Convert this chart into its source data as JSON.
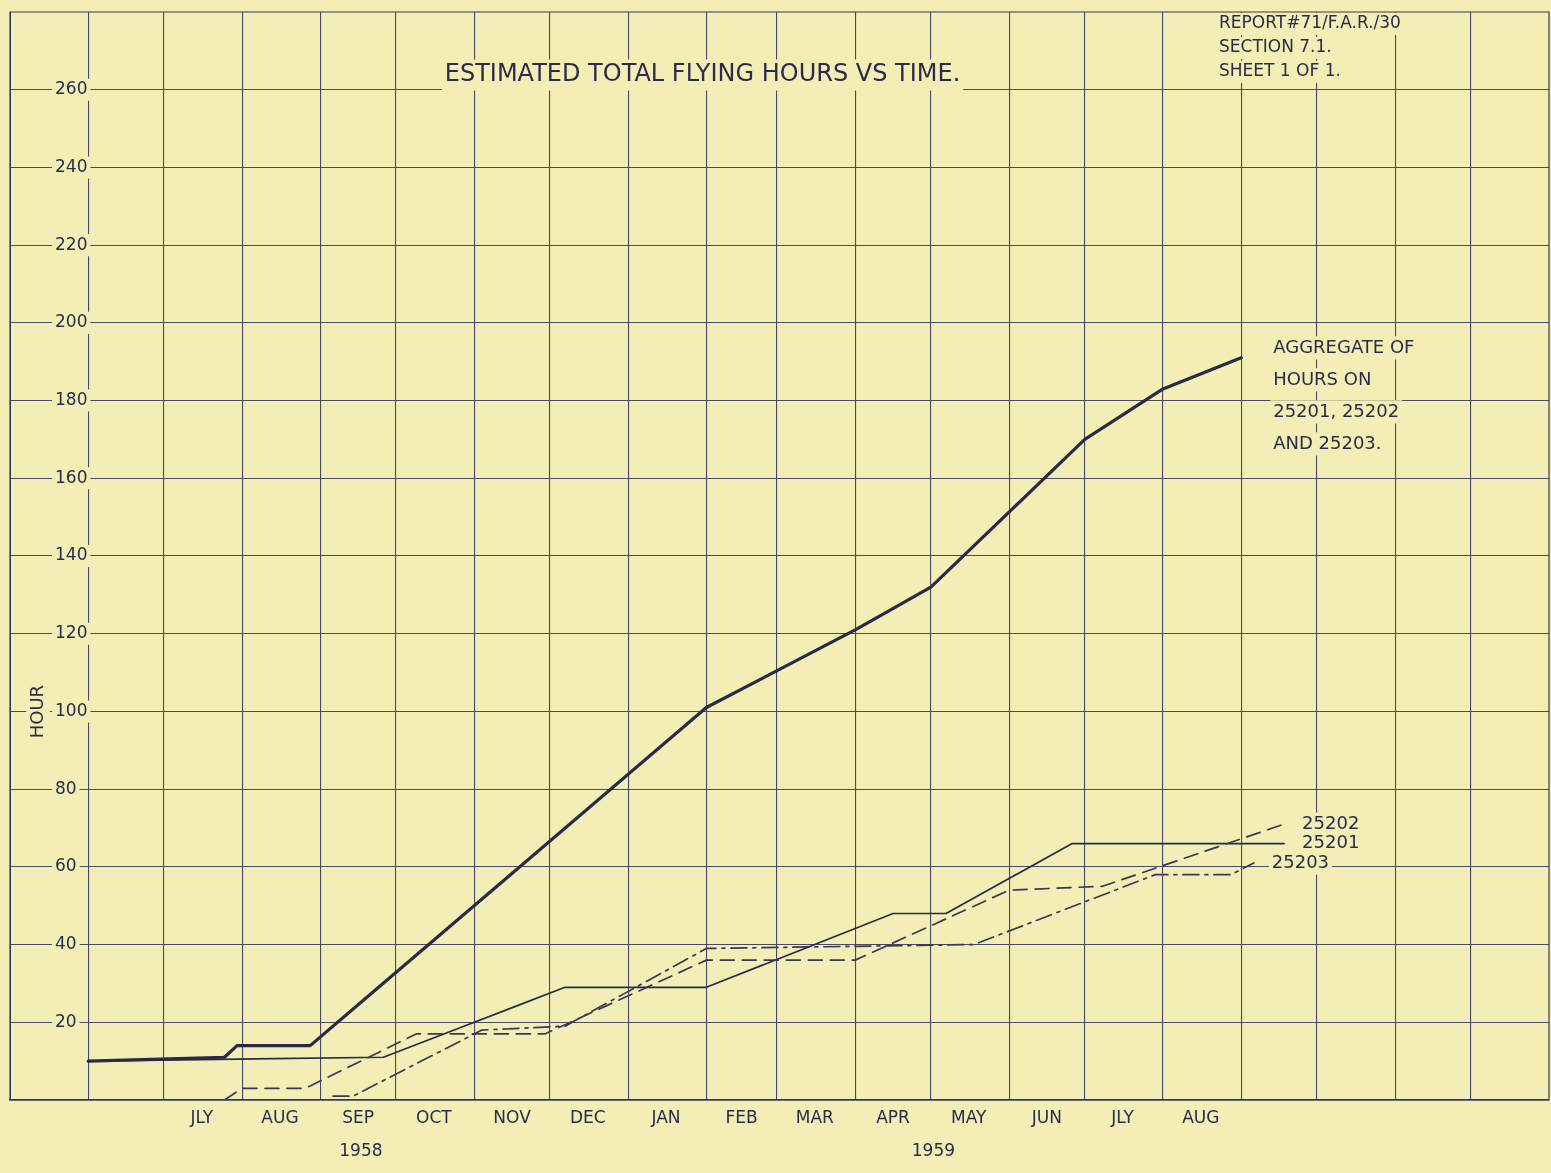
{
  "chart_data": {
    "type": "line",
    "title": "ESTIMATED TOTAL FLYING HOURS VS TIME.",
    "ylabel": "HOUR",
    "annotations": [
      "REPORT#71/F.A.R./30",
      "SECTION 7.1.",
      "SHEET 1 OF 1.",
      "1958",
      "1959"
    ],
    "xlim": [
      "1958-05-01",
      "1960-01-01"
    ],
    "xticks": [
      {
        "value": "1958-06-01",
        "label": null
      },
      {
        "value": "1958-07-01",
        "label": null
      },
      {
        "value": "1958-08-01",
        "label": null
      },
      {
        "value": "1958-09-01",
        "label": null
      },
      {
        "value": "1958-10-01",
        "label": null
      },
      {
        "value": "1958-11-01",
        "label": null
      },
      {
        "value": "1958-12-01",
        "label": null
      },
      {
        "value": "1959-01-01",
        "label": null
      },
      {
        "value": "1959-02-01",
        "label": null
      },
      {
        "value": "1959-03-01",
        "label": null
      },
      {
        "value": "1959-04-01",
        "label": null
      },
      {
        "value": "1959-05-01",
        "label": null
      },
      {
        "value": "1959-06-01",
        "label": null
      },
      {
        "value": "1959-07-01",
        "label": null
      },
      {
        "value": "1959-08-01",
        "label": null
      },
      {
        "value": "1959-09-01",
        "label": null
      },
      {
        "value": "1959-10-01",
        "label": null
      },
      {
        "value": "1959-11-01",
        "label": null
      },
      {
        "value": "1959-12-01",
        "label": null
      },
      {
        "value": "1958-07-16",
        "label": "JLY"
      },
      {
        "value": "1958-08-16",
        "label": "AUG"
      },
      {
        "value": "1958-09-16",
        "label": "SEP"
      },
      {
        "value": "1958-10-16",
        "label": "OCT"
      },
      {
        "value": "1958-11-16",
        "label": "NOV"
      },
      {
        "value": "1958-12-16",
        "label": "DEC"
      },
      {
        "value": "1959-01-16",
        "label": "JAN"
      },
      {
        "value": "1959-02-15",
        "label": "FEB"
      },
      {
        "value": "1959-03-16",
        "label": "MAR"
      },
      {
        "value": "1959-04-16",
        "label": "APR"
      },
      {
        "value": "1959-05-16",
        "label": "MAY"
      },
      {
        "value": "1959-06-16",
        "label": "JUN"
      },
      {
        "value": "1959-07-16",
        "label": "JLY"
      },
      {
        "value": "1959-08-16",
        "label": "AUG"
      }
    ],
    "ylim": [
      0,
      280
    ],
    "yticks": [
      20,
      40,
      60,
      80,
      100,
      120,
      140,
      160,
      180,
      200,
      220,
      240,
      260
    ],
    "grid": true,
    "legend": false,
    "marker": "none",
    "series": [
      {
        "name": "AGGREGATE OF HOURS ON 25201, 25202 AND 25203.",
        "color": "#2b2945",
        "line_style": "solid",
        "x": [
          "1958-06-01",
          "1958-07-25",
          "1958-07-30",
          "1958-08-28",
          "1959-02-01",
          "1959-04-01",
          "1959-05-01",
          "1959-07-01",
          "1959-08-01",
          "1959-09-01"
        ],
        "values": [
          10,
          11,
          14,
          14,
          101,
          121,
          132,
          170,
          183,
          191
        ]
      },
      {
        "name": "25202",
        "color": "#3a3852",
        "line_style": "dashed",
        "x": [
          "1958-07-25",
          "1958-08-01",
          "1958-08-26",
          "1958-10-09",
          "1958-11-29",
          "1959-02-01",
          "1959-04-01",
          "1959-06-01",
          "1959-07-08",
          "1959-09-18"
        ],
        "values": [
          0,
          3,
          3,
          17,
          17,
          36,
          36,
          54,
          55,
          71
        ]
      },
      {
        "name": "25201",
        "color": "#2b2945",
        "line_style": "solid",
        "x": [
          "1958-06-01",
          "1958-09-26",
          "1958-12-07",
          "1959-02-01",
          "1959-04-16",
          "1959-05-07",
          "1959-06-26",
          "1959-09-18"
        ],
        "values": [
          10,
          11,
          29,
          29,
          48,
          48,
          66,
          66
        ]
      },
      {
        "name": "25203",
        "color": "#3a3852",
        "line_style": "dotted",
        "x": [
          "1958-09-06",
          "1958-09-14",
          "1958-11-04",
          "1958-12-07",
          "1959-02-01",
          "1959-05-18",
          "1959-07-29",
          "1959-08-28",
          "1959-09-06"
        ],
        "values": [
          1,
          1,
          18,
          19,
          39,
          40,
          58,
          58,
          61
        ]
      }
    ]
  }
}
